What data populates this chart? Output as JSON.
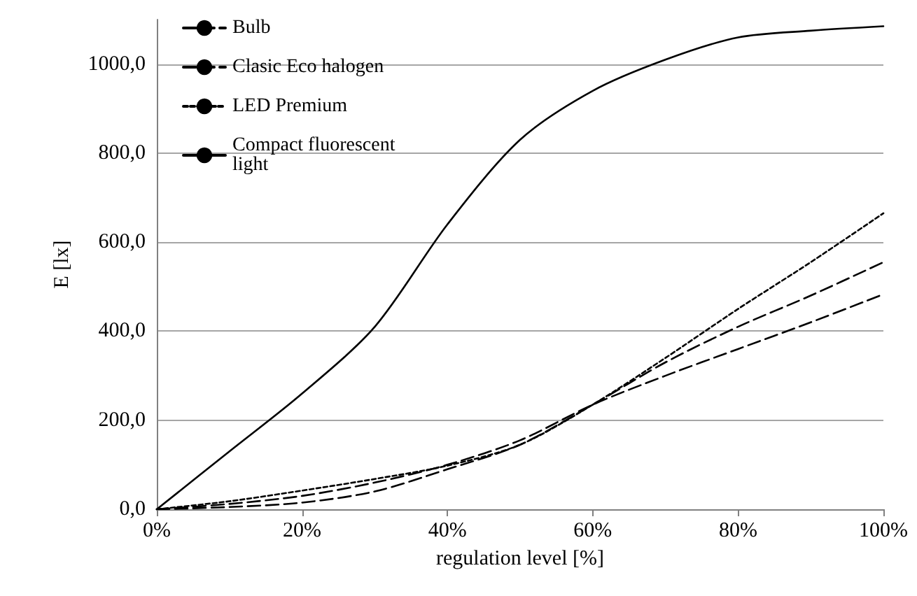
{
  "chart_data": {
    "type": "line",
    "xlabel": "regulation level [%]",
    "ylabel": "E [lx]",
    "x": [
      0,
      10,
      20,
      30,
      40,
      50,
      60,
      70,
      80,
      90,
      100
    ],
    "series": [
      {
        "name": "Bulb",
        "color": "#000000",
        "line_style": "dashed",
        "values": [
          0,
          5,
          15,
          40,
          90,
          145,
          235,
          330,
          410,
          480,
          555
        ]
      },
      {
        "name": "Clasic Eco halogen",
        "color": "#000000",
        "line_style": "dashed",
        "values": [
          0,
          12,
          30,
          60,
          100,
          155,
          235,
          300,
          360,
          420,
          483
        ]
      },
      {
        "name": "LED Premium",
        "color": "#000000",
        "line_style": "dotted",
        "values": [
          0,
          18,
          42,
          68,
          98,
          145,
          235,
          340,
          450,
          555,
          665
        ]
      },
      {
        "name": "Compact fluorescent light",
        "color": "#000000",
        "line_style": "solid",
        "values": [
          0,
          130,
          260,
          410,
          640,
          830,
          940,
          1010,
          1060,
          1075,
          1085
        ]
      }
    ],
    "xlim": [
      0,
      100
    ],
    "xticks": [
      {
        "value": 0,
        "label": "0%"
      },
      {
        "value": 20,
        "label": "20%"
      },
      {
        "value": 40,
        "label": "40%"
      },
      {
        "value": 60,
        "label": "60%"
      },
      {
        "value": 80,
        "label": "80%"
      },
      {
        "value": 100,
        "label": "100%"
      }
    ],
    "ylim": [
      0,
      1100
    ],
    "yticks": [
      {
        "value": 0,
        "label": "0,0"
      },
      {
        "value": 200,
        "label": "200,0"
      },
      {
        "value": 400,
        "label": "400,0"
      },
      {
        "value": 600,
        "label": "600,0"
      },
      {
        "value": 800,
        "label": "800,0"
      },
      {
        "value": 1000,
        "label": "1000,0"
      }
    ],
    "grid": "y",
    "legend": "top left",
    "marker": "none"
  }
}
